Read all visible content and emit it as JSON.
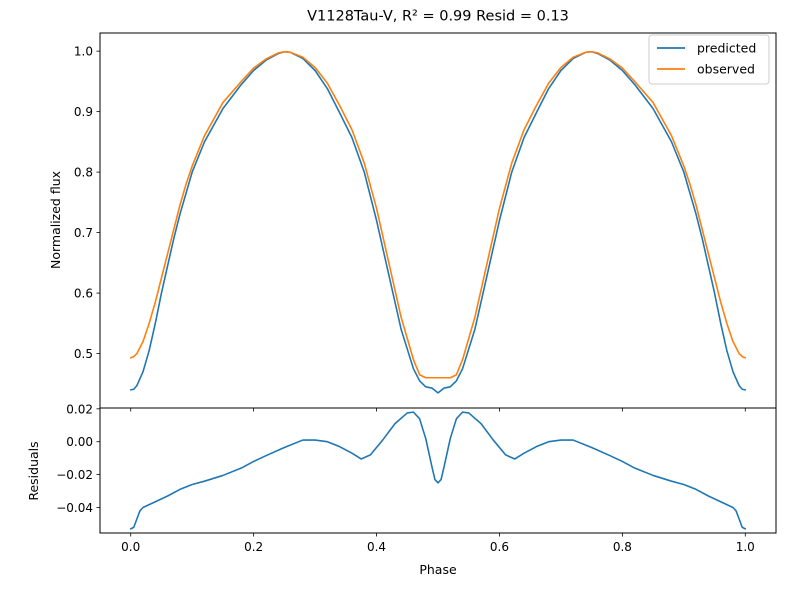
{
  "figure": {
    "title": "V1128Tau-V, R² = 0.99 Resid = 0.13"
  },
  "chart_data": [
    {
      "type": "line",
      "panel": "top",
      "title": "V1128Tau-V, R² = 0.99 Resid = 0.13",
      "xlabel": "",
      "ylabel": "Normalized flux",
      "xlim": [
        -0.05,
        1.05
      ],
      "ylim": [
        0.41,
        1.03
      ],
      "xticks": [
        0.0,
        0.2,
        0.4,
        0.6,
        0.8,
        1.0
      ],
      "xtick_labels_visible": false,
      "yticks": [
        0.5,
        0.6,
        0.7,
        0.8,
        0.9,
        1.0
      ],
      "ytick_labels": [
        "0.5",
        "0.6",
        "0.7",
        "0.8",
        "0.9",
        "1.0"
      ],
      "grid": false,
      "legend": {
        "placement": "top-right",
        "entries": [
          "predicted",
          "observed"
        ]
      },
      "series": [
        {
          "name": "predicted",
          "color": "#1f77b4",
          "x": [
            0.0,
            0.005,
            0.01,
            0.02,
            0.03,
            0.04,
            0.05,
            0.06,
            0.07,
            0.08,
            0.09,
            0.1,
            0.12,
            0.15,
            0.18,
            0.2,
            0.22,
            0.24,
            0.25,
            0.26,
            0.28,
            0.3,
            0.32,
            0.34,
            0.36,
            0.38,
            0.4,
            0.42,
            0.44,
            0.46,
            0.47,
            0.48,
            0.49,
            0.5,
            0.51,
            0.52,
            0.53,
            0.54,
            0.56,
            0.58,
            0.6,
            0.62,
            0.64,
            0.66,
            0.68,
            0.7,
            0.72,
            0.74,
            0.75,
            0.76,
            0.78,
            0.8,
            0.82,
            0.85,
            0.88,
            0.9,
            0.91,
            0.92,
            0.93,
            0.94,
            0.95,
            0.96,
            0.97,
            0.98,
            0.99,
            0.995,
            1.0
          ],
          "y": [
            0.44,
            0.441,
            0.447,
            0.47,
            0.505,
            0.55,
            0.6,
            0.645,
            0.69,
            0.73,
            0.765,
            0.8,
            0.85,
            0.905,
            0.945,
            0.968,
            0.985,
            0.996,
            0.999,
            0.998,
            0.988,
            0.968,
            0.938,
            0.898,
            0.857,
            0.8,
            0.72,
            0.63,
            0.54,
            0.475,
            0.455,
            0.445,
            0.443,
            0.435,
            0.443,
            0.445,
            0.455,
            0.475,
            0.54,
            0.63,
            0.72,
            0.8,
            0.857,
            0.898,
            0.938,
            0.968,
            0.988,
            0.998,
            0.999,
            0.996,
            0.985,
            0.968,
            0.945,
            0.905,
            0.85,
            0.8,
            0.765,
            0.73,
            0.69,
            0.645,
            0.6,
            0.55,
            0.505,
            0.47,
            0.447,
            0.441,
            0.44
          ]
        },
        {
          "name": "observed",
          "color": "#ff7f0e",
          "x": [
            0.0,
            0.005,
            0.01,
            0.02,
            0.03,
            0.04,
            0.05,
            0.06,
            0.07,
            0.08,
            0.09,
            0.1,
            0.12,
            0.15,
            0.18,
            0.2,
            0.22,
            0.24,
            0.25,
            0.26,
            0.28,
            0.3,
            0.32,
            0.34,
            0.36,
            0.38,
            0.4,
            0.42,
            0.44,
            0.46,
            0.47,
            0.48,
            0.49,
            0.5,
            0.51,
            0.52,
            0.53,
            0.54,
            0.56,
            0.58,
            0.6,
            0.62,
            0.64,
            0.66,
            0.68,
            0.7,
            0.72,
            0.74,
            0.75,
            0.76,
            0.78,
            0.8,
            0.82,
            0.85,
            0.88,
            0.9,
            0.91,
            0.92,
            0.93,
            0.94,
            0.95,
            0.96,
            0.97,
            0.98,
            0.99,
            0.995,
            1.0
          ],
          "y": [
            0.493,
            0.495,
            0.5,
            0.52,
            0.55,
            0.585,
            0.625,
            0.665,
            0.705,
            0.745,
            0.78,
            0.81,
            0.86,
            0.915,
            0.95,
            0.972,
            0.987,
            0.997,
            0.999,
            0.998,
            0.99,
            0.973,
            0.947,
            0.91,
            0.87,
            0.815,
            0.74,
            0.65,
            0.56,
            0.49,
            0.465,
            0.46,
            0.46,
            0.46,
            0.46,
            0.46,
            0.465,
            0.49,
            0.56,
            0.65,
            0.74,
            0.815,
            0.87,
            0.91,
            0.947,
            0.973,
            0.99,
            0.998,
            0.999,
            0.997,
            0.987,
            0.972,
            0.95,
            0.915,
            0.86,
            0.81,
            0.78,
            0.745,
            0.705,
            0.665,
            0.625,
            0.585,
            0.55,
            0.52,
            0.5,
            0.495,
            0.493
          ]
        }
      ]
    },
    {
      "type": "line",
      "panel": "bottom",
      "title": "",
      "xlabel": "Phase",
      "ylabel": "Residuals",
      "xlim": [
        -0.05,
        1.05
      ],
      "ylim": [
        -0.0555,
        0.0205
      ],
      "xticks": [
        0.0,
        0.2,
        0.4,
        0.6,
        0.8,
        1.0
      ],
      "xtick_labels": [
        "0.0",
        "0.2",
        "0.4",
        "0.6",
        "0.8",
        "1.0"
      ],
      "yticks": [
        -0.04,
        -0.02,
        0.0,
        0.02
      ],
      "ytick_labels": [
        "−0.04",
        "−0.02",
        "0.00",
        "0.02"
      ],
      "grid": false,
      "series": [
        {
          "color": "#1f77b4",
          "x": [
            0.0,
            0.005,
            0.01,
            0.015,
            0.02,
            0.04,
            0.06,
            0.08,
            0.1,
            0.12,
            0.15,
            0.18,
            0.2,
            0.22,
            0.25,
            0.28,
            0.3,
            0.32,
            0.34,
            0.36,
            0.375,
            0.39,
            0.41,
            0.43,
            0.45,
            0.46,
            0.47,
            0.48,
            0.49,
            0.495,
            0.5,
            0.505,
            0.51,
            0.52,
            0.53,
            0.54,
            0.55,
            0.57,
            0.59,
            0.61,
            0.625,
            0.64,
            0.66,
            0.68,
            0.7,
            0.72,
            0.75,
            0.78,
            0.8,
            0.82,
            0.85,
            0.88,
            0.9,
            0.92,
            0.94,
            0.96,
            0.98,
            0.985,
            0.99,
            0.995,
            1.0
          ],
          "y": [
            -0.053,
            -0.052,
            -0.047,
            -0.042,
            -0.04,
            -0.0365,
            -0.033,
            -0.029,
            -0.026,
            -0.024,
            -0.0205,
            -0.016,
            -0.012,
            -0.0085,
            -0.0035,
            0.001,
            0.001,
            0.0,
            -0.003,
            -0.007,
            -0.0105,
            -0.008,
            0.001,
            0.011,
            0.0175,
            0.018,
            0.014,
            0.002,
            -0.015,
            -0.023,
            -0.025,
            -0.023,
            -0.015,
            0.002,
            0.014,
            0.018,
            0.0175,
            0.011,
            0.001,
            -0.008,
            -0.0105,
            -0.007,
            -0.003,
            0.0,
            0.001,
            0.001,
            -0.0035,
            -0.0085,
            -0.012,
            -0.016,
            -0.0205,
            -0.024,
            -0.026,
            -0.029,
            -0.033,
            -0.0365,
            -0.04,
            -0.042,
            -0.047,
            -0.052,
            -0.053
          ]
        }
      ]
    }
  ]
}
